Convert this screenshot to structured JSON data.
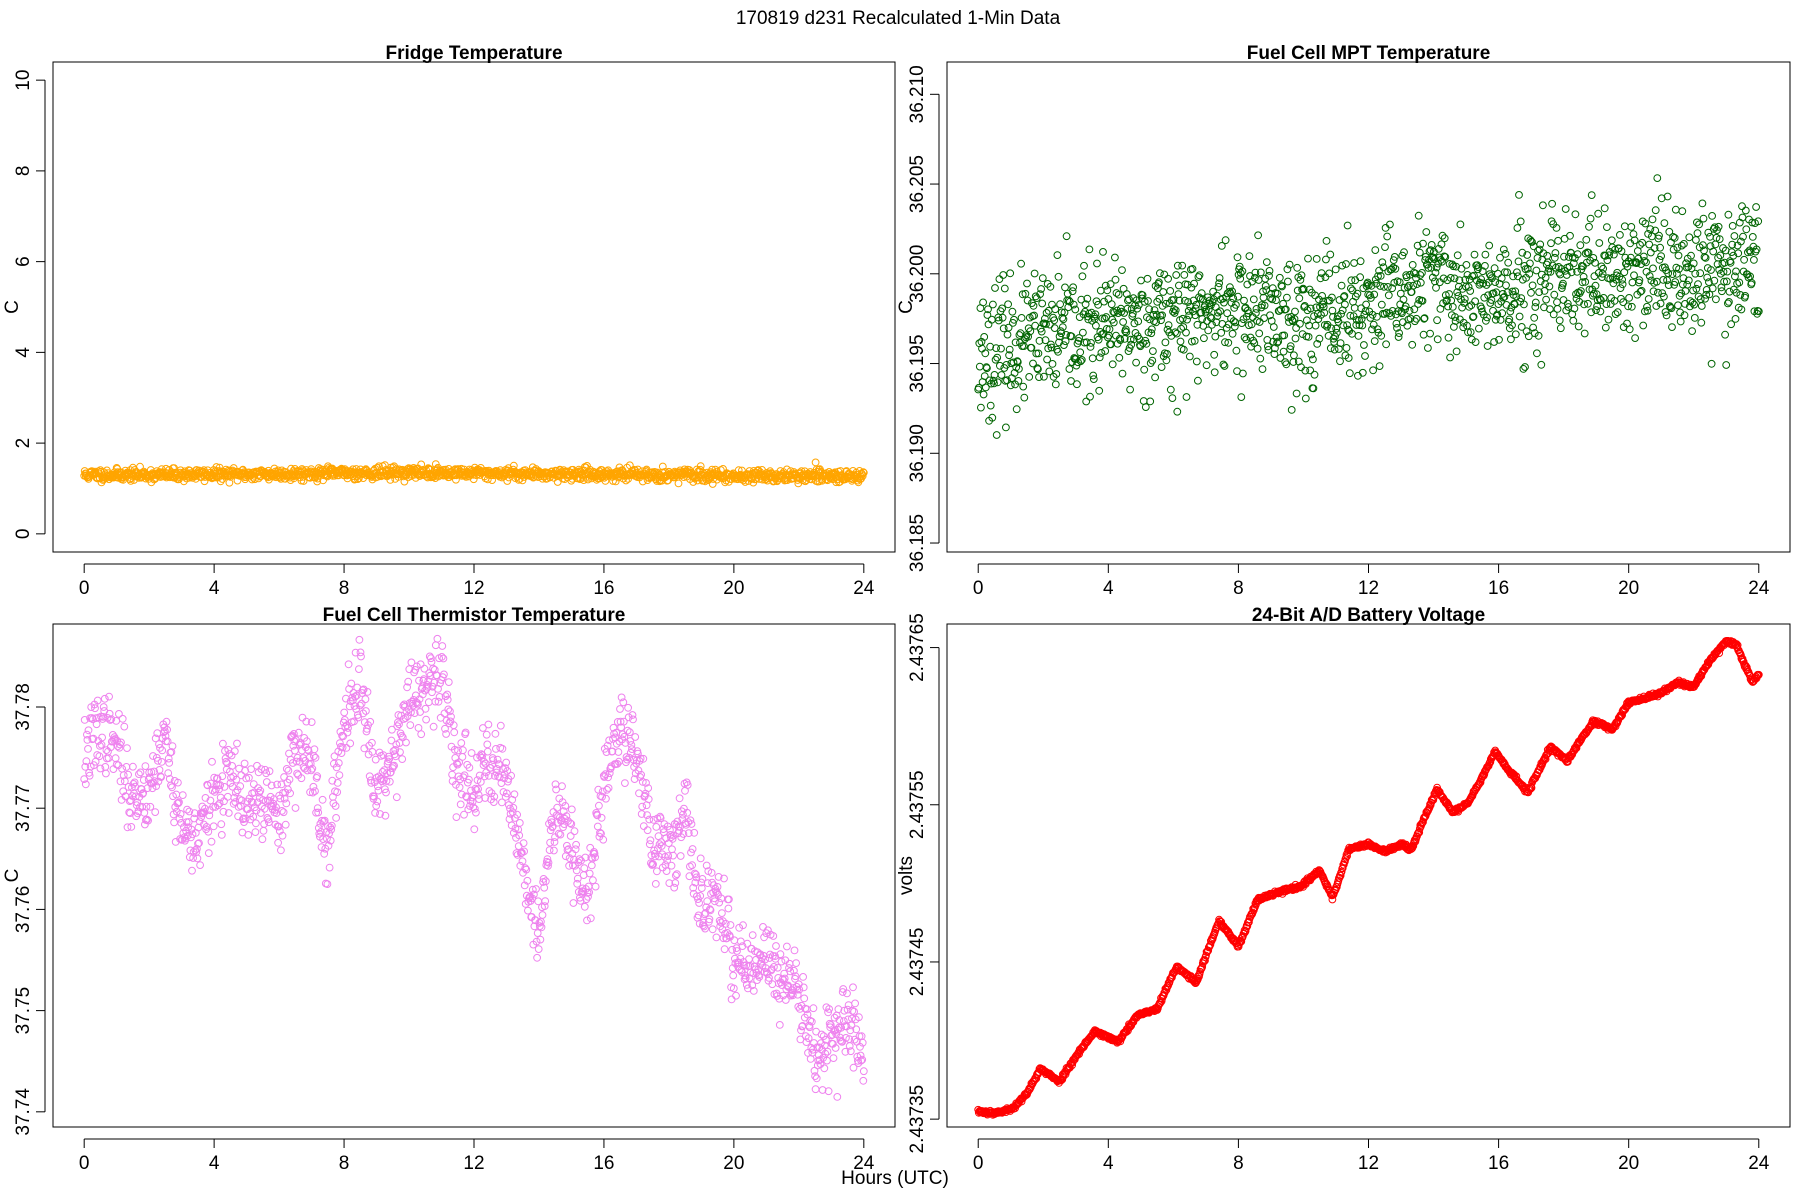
{
  "figure": {
    "title": "170819   d231   Recalculated 1-Min Data",
    "xlabel": "Hours (UTC)"
  },
  "chart_data": [
    {
      "type": "scatter",
      "title": "Fridge Temperature",
      "xlabel": "Hours (UTC)",
      "ylabel": "C",
      "xlim": [
        -0.96,
        24.96
      ],
      "ylim": [
        -0.4,
        10.4
      ],
      "xticks": [
        0,
        4,
        8,
        12,
        16,
        20,
        24
      ],
      "yticks": [
        0,
        2,
        4,
        6,
        8,
        10
      ],
      "color": "#FFA500",
      "series": [
        {
          "trend": {
            "x": [
              0,
              2,
              4,
              6,
              8,
              10,
              12,
              14,
              16,
              18,
              20,
              22,
              24
            ],
            "y": [
              1.3,
              1.3,
              1.31,
              1.32,
              1.34,
              1.35,
              1.34,
              1.32,
              1.31,
              1.3,
              1.28,
              1.27,
              1.27
            ]
          },
          "spread": 0.12
        }
      ]
    },
    {
      "type": "scatter",
      "title": "Fuel Cell MPT Temperature",
      "xlabel": "Hours (UTC)",
      "ylabel": "C",
      "xlim": [
        -0.96,
        24.96
      ],
      "ylim": [
        36.1845,
        36.2118
      ],
      "xticks": [
        0,
        4,
        8,
        12,
        16,
        20,
        24
      ],
      "yticks": [
        36.185,
        36.19,
        36.195,
        36.2,
        36.205,
        36.21
      ],
      "ytick_labels": [
        "36.185",
        "36.190",
        "36.195",
        "36.200",
        "36.205",
        "36.210"
      ],
      "color": "#006400",
      "series": [
        {
          "trend": {
            "x": [
              0,
              2,
              4,
              6,
              8,
              10,
              12,
              14,
              16,
              18,
              20,
              22,
              24
            ],
            "y": [
              36.1955,
              36.1965,
              36.197,
              36.1975,
              36.198,
              36.1975,
              36.198,
              36.1995,
              36.1985,
              36.1995,
              36.2,
              36.2005,
              36.2005
            ]
          },
          "spread": 0.0032
        }
      ]
    },
    {
      "type": "scatter",
      "title": "Fuel Cell Thermistor Temperature",
      "xlabel": "Hours (UTC)",
      "ylabel": "C",
      "xlim": [
        -0.96,
        24.96
      ],
      "ylim": [
        37.7385,
        37.7882
      ],
      "xticks": [
        0,
        4,
        8,
        12,
        16,
        20,
        24
      ],
      "yticks": [
        37.74,
        37.75,
        37.76,
        37.77,
        37.78
      ],
      "ytick_labels": [
        "37.74",
        "37.75",
        "37.76",
        "37.77",
        "37.78"
      ],
      "color": "#EE82EE",
      "series": [
        {
          "trend": {
            "x": [
              0,
              0.5,
              1,
              1.5,
              2,
              2.5,
              3,
              3.5,
              4,
              4.5,
              5,
              5.5,
              6,
              6.5,
              7,
              7.5,
              8,
              8.5,
              9,
              9.5,
              10,
              10.5,
              11,
              11.5,
              12,
              12.5,
              13,
              13.5,
              14,
              14.5,
              15,
              15.5,
              16,
              16.5,
              17,
              17.5,
              18,
              18.5,
              19,
              19.5,
              20,
              20.5,
              21,
              21.5,
              22,
              22.5,
              23,
              23.5,
              24
            ],
            "y": [
              37.775,
              37.778,
              37.776,
              37.771,
              37.772,
              37.777,
              37.768,
              37.767,
              37.771,
              37.773,
              37.77,
              37.771,
              37.769,
              37.776,
              37.775,
              37.765,
              37.779,
              37.783,
              37.772,
              37.775,
              37.781,
              37.781,
              37.783,
              37.774,
              37.772,
              37.775,
              37.773,
              37.765,
              37.757,
              37.771,
              37.767,
              37.761,
              37.772,
              37.778,
              37.776,
              37.766,
              37.766,
              37.769,
              37.76,
              37.761,
              37.755,
              37.754,
              37.755,
              37.753,
              37.752,
              37.746,
              37.747,
              37.749,
              37.745
            ]
          },
          "spread": 0.0035
        }
      ]
    },
    {
      "type": "scatter",
      "title": "24-Bit A/D Battery Voltage",
      "xlabel": "Hours (UTC)",
      "ylabel": "volts",
      "xlim": [
        -0.96,
        24.96
      ],
      "ylim": [
        2.437345,
        2.437665
      ],
      "xticks": [
        0,
        4,
        8,
        12,
        16,
        20,
        24
      ],
      "yticks": [
        2.43735,
        2.43745,
        2.43755,
        2.43765
      ],
      "ytick_labels": [
        "2.43735",
        "2.43745",
        "2.43755",
        "2.43765"
      ],
      "color": "#FF0000",
      "series": [
        {
          "trend": {
            "x": [
              0,
              0.5,
              1,
              1.5,
              1.9,
              2.5,
              3.1,
              3.6,
              4.3,
              4.9,
              5.5,
              6.1,
              6.7,
              7.4,
              8.0,
              8.6,
              9.3,
              9.9,
              10.5,
              10.9,
              11.4,
              12.0,
              12.5,
              13.0,
              13.3,
              14.1,
              14.6,
              15.1,
              15.9,
              16.3,
              16.9,
              17.6,
              18.1,
              18.9,
              19.5,
              20.0,
              20.5,
              21.0,
              21.5,
              22.0,
              22.5,
              23.0,
              23.3,
              23.8,
              24.0
            ],
            "y": [
              2.437355,
              2.437354,
              2.437356,
              2.437366,
              2.437382,
              2.437374,
              2.437393,
              2.437406,
              2.437399,
              2.437416,
              2.43742,
              2.437447,
              2.437437,
              2.437476,
              2.43746,
              2.43749,
              2.437495,
              2.437498,
              2.437508,
              2.437491,
              2.437522,
              2.437525,
              2.43752,
              2.437525,
              2.437521,
              2.43756,
              2.437545,
              2.437552,
              2.437584,
              2.437572,
              2.437558,
              2.437587,
              2.437578,
              2.437603,
              2.437598,
              2.437615,
              2.437618,
              2.437621,
              2.437628,
              2.437625,
              2.437642,
              2.437654,
              2.437652,
              2.437628,
              2.437633
            ]
          },
          "spread": 1.2e-06
        }
      ]
    }
  ]
}
